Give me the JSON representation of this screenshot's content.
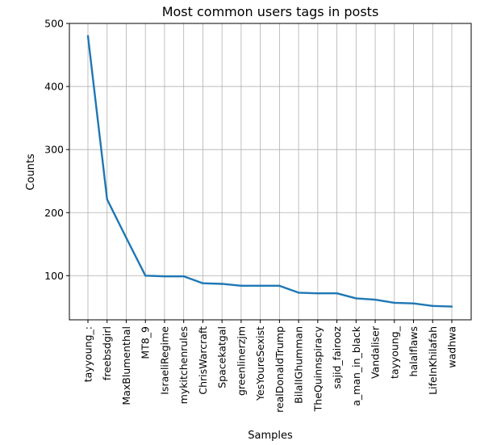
{
  "chart_data": {
    "type": "line",
    "title": "Most common users tags in posts",
    "xlabel": "Samples",
    "ylabel": "Counts",
    "categories": [
      "tayyoung_:",
      "freebsdgirl",
      "MaxBlumenthal",
      "MT8_9",
      "IsraeliRegime",
      "mykitchenrules",
      "ChrisWarcraft",
      "Spacekatgal",
      "greenlinerzjm",
      "YesYoureSexist",
      "realDonaldTrump",
      "BilalIGhumman",
      "TheQuinnspiracy",
      "sajid_fairooz",
      "a_man_in_black",
      "Vandaliser",
      "tayyoung_",
      "halalflaws",
      "LifeInKhilafah",
      "wadhwa"
    ],
    "values": [
      480,
      221,
      160,
      100,
      99,
      99,
      88,
      87,
      84,
      84,
      84,
      73,
      72,
      72,
      64,
      62,
      57,
      56,
      52,
      51
    ],
    "ylim": [
      30,
      500
    ],
    "yticks": [
      100,
      200,
      300,
      400,
      500
    ],
    "grid": true,
    "line_color": "#1f77b4"
  }
}
